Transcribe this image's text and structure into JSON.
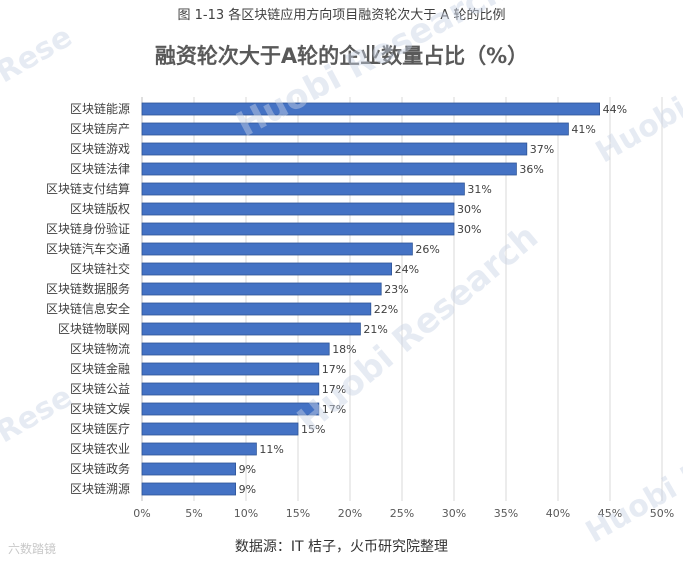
{
  "caption": "图 1-13  各区块链应用方向项目融资轮次大于 A 轮的比例",
  "source_note": "数据源：IT 桔子，火币研究院整理",
  "watermark": {
    "brand": "Huobi Research",
    "fragment": "Rese",
    "corner_logo": "六数踏镜"
  },
  "colors": {
    "bar": "#4472c4",
    "bar_edge": "#2f5597",
    "grid": "#d9d9d9"
  },
  "chart_data": {
    "type": "bar",
    "orientation": "horizontal",
    "title": "融资轮次大于A轮的企业数量占比（%）",
    "xlabel": "",
    "ylabel": "",
    "xlim": [
      0,
      50
    ],
    "x_ticks": [
      "0%",
      "5%",
      "10%",
      "15%",
      "20%",
      "25%",
      "30%",
      "35%",
      "40%",
      "45%",
      "50%"
    ],
    "x_tick_values": [
      0,
      5,
      10,
      15,
      20,
      25,
      30,
      35,
      40,
      45,
      50
    ],
    "grid": true,
    "legend": "none",
    "categories": [
      "区块链能源",
      "区块链房产",
      "区块链游戏",
      "区块链法律",
      "区块链支付结算",
      "区块链版权",
      "区块链身份验证",
      "区块链汽车交通",
      "区块链社交",
      "区块链数据服务",
      "区块链信息安全",
      "区块链物联网",
      "区块链物流",
      "区块链金融",
      "区块链公益",
      "区块链文娱",
      "区块链医疗",
      "区块链农业",
      "区块链政务",
      "区块链溯源"
    ],
    "values": [
      44,
      41,
      37,
      36,
      31,
      30,
      30,
      26,
      24,
      23,
      22,
      21,
      18,
      17,
      17,
      17,
      15,
      11,
      9,
      9
    ],
    "value_labels": [
      "44%",
      "41%",
      "37%",
      "36%",
      "31%",
      "30%",
      "30%",
      "26%",
      "24%",
      "23%",
      "22%",
      "21%",
      "18%",
      "17%",
      "17%",
      "17%",
      "15%",
      "11%",
      "9%",
      "9%"
    ]
  }
}
